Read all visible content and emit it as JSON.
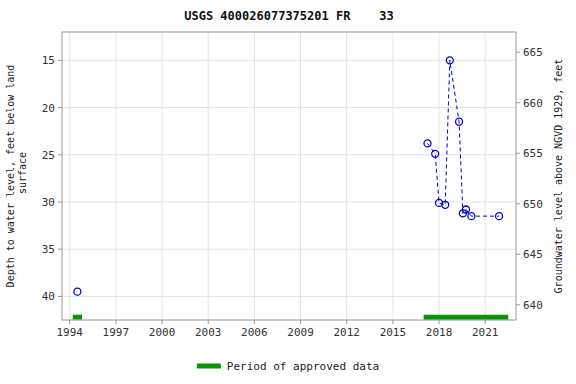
{
  "chart_data": {
    "type": "line",
    "title": "USGS 400026077375201 FR    33",
    "ylabel": "Depth to water level, feet below land\n surface",
    "y2label": "Groundwater level above NGVD 1929, feet",
    "xlim": [
      1993.5,
      2023.0
    ],
    "ylim": [
      42.5,
      12.0
    ],
    "y2lim": [
      638.5,
      667.0
    ],
    "xticks": [
      1994,
      1997,
      2000,
      2003,
      2006,
      2009,
      2012,
      2015,
      2018,
      2021
    ],
    "yticks": [
      15,
      20,
      25,
      30,
      35,
      40
    ],
    "y2ticks": [
      640,
      645,
      650,
      655,
      660,
      665
    ],
    "grid": true,
    "legend": "bottom",
    "series": [
      {
        "type": "scatter",
        "x": [
          1994.5
        ],
        "values": [
          39.5
        ],
        "color": "#0000cc",
        "marker": "circle",
        "line_style": "none"
      },
      {
        "type": "line",
        "x": [
          2017.25,
          2017.75,
          2018.0,
          2018.4,
          2018.7,
          2019.3,
          2019.55,
          2019.75,
          2020.1,
          2021.9
        ],
        "values": [
          23.8,
          24.9,
          30.1,
          30.3,
          15.0,
          21.5,
          31.2,
          30.8,
          31.5,
          31.5
        ],
        "color": "#0000cc",
        "marker": "circle",
        "line_style": "dashed"
      },
      {
        "type": "range",
        "name": "Period of approved data",
        "x_start": [
          1994.2,
          2017.0
        ],
        "x_end": [
          1994.8,
          2022.5
        ],
        "values": [
          42.2,
          42.2
        ],
        "color": "#009900"
      }
    ]
  }
}
